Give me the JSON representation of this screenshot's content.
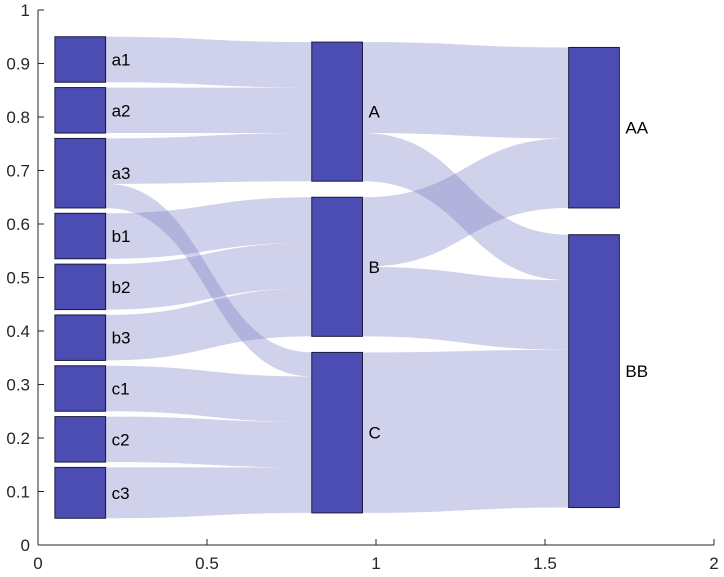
{
  "chart_data": {
    "type": "sankey",
    "title": "",
    "xlabel": "",
    "ylabel": "",
    "xlim": [
      0,
      2
    ],
    "ylim": [
      0,
      1
    ],
    "x_ticks": [
      "0",
      "0.5",
      "1",
      "1.5",
      "2"
    ],
    "y_ticks": [
      "0",
      "0.1",
      "0.2",
      "0.3",
      "0.4",
      "0.5",
      "0.6",
      "0.7",
      "0.8",
      "0.9",
      "1"
    ],
    "node_color": "#4b4db3",
    "flow_color": "#7d80c6",
    "columns": [
      {
        "x_range": [
          0.05,
          0.2
        ],
        "nodes": [
          {
            "id": "a1",
            "label": "a1",
            "y_top": 0.95,
            "y_bottom": 0.865
          },
          {
            "id": "a2",
            "label": "a2",
            "y_top": 0.855,
            "y_bottom": 0.77
          },
          {
            "id": "a3",
            "label": "a3",
            "y_top": 0.76,
            "y_bottom": 0.63
          },
          {
            "id": "b1",
            "label": "b1",
            "y_top": 0.62,
            "y_bottom": 0.535
          },
          {
            "id": "b2",
            "label": "b2",
            "y_top": 0.525,
            "y_bottom": 0.44
          },
          {
            "id": "b3",
            "label": "b3",
            "y_top": 0.43,
            "y_bottom": 0.345
          },
          {
            "id": "c1",
            "label": "c1",
            "y_top": 0.335,
            "y_bottom": 0.25
          },
          {
            "id": "c2",
            "label": "c2",
            "y_top": 0.24,
            "y_bottom": 0.155
          },
          {
            "id": "c3",
            "label": "c3",
            "y_top": 0.145,
            "y_bottom": 0.05
          }
        ]
      },
      {
        "x_range": [
          0.81,
          0.96
        ],
        "nodes": [
          {
            "id": "A",
            "label": "A",
            "y_top": 0.94,
            "y_bottom": 0.68
          },
          {
            "id": "B",
            "label": "B",
            "y_top": 0.65,
            "y_bottom": 0.39
          },
          {
            "id": "C",
            "label": "C",
            "y_top": 0.36,
            "y_bottom": 0.06
          }
        ]
      },
      {
        "x_range": [
          1.57,
          1.72
        ],
        "nodes": [
          {
            "id": "AA",
            "label": "AA",
            "y_top": 0.93,
            "y_bottom": 0.63
          },
          {
            "id": "BB",
            "label": "BB",
            "y_top": 0.58,
            "y_bottom": 0.07
          }
        ]
      }
    ],
    "flows": [
      {
        "source": "a1",
        "target": "A",
        "src": [
          0.95,
          0.865
        ],
        "dst": [
          0.94,
          0.855
        ]
      },
      {
        "source": "a2",
        "target": "A",
        "src": [
          0.855,
          0.77
        ],
        "dst": [
          0.855,
          0.77
        ]
      },
      {
        "source": "a3",
        "target": "A",
        "src": [
          0.76,
          0.675
        ],
        "dst": [
          0.77,
          0.68
        ]
      },
      {
        "source": "a3",
        "target": "C",
        "src": [
          0.675,
          0.63
        ],
        "dst": [
          0.36,
          0.315
        ]
      },
      {
        "source": "b1",
        "target": "B",
        "src": [
          0.62,
          0.535
        ],
        "dst": [
          0.65,
          0.565
        ]
      },
      {
        "source": "b2",
        "target": "B",
        "src": [
          0.525,
          0.44
        ],
        "dst": [
          0.565,
          0.48
        ]
      },
      {
        "source": "b3",
        "target": "B",
        "src": [
          0.43,
          0.345
        ],
        "dst": [
          0.48,
          0.39
        ]
      },
      {
        "source": "c1",
        "target": "C",
        "src": [
          0.335,
          0.25
        ],
        "dst": [
          0.315,
          0.23
        ]
      },
      {
        "source": "c2",
        "target": "C",
        "src": [
          0.24,
          0.155
        ],
        "dst": [
          0.23,
          0.145
        ]
      },
      {
        "source": "c3",
        "target": "C",
        "src": [
          0.145,
          0.05
        ],
        "dst": [
          0.145,
          0.06
        ]
      },
      {
        "source": "A",
        "target": "AA",
        "src": [
          0.94,
          0.77
        ],
        "dst": [
          0.93,
          0.76
        ]
      },
      {
        "source": "A",
        "target": "BB",
        "src": [
          0.77,
          0.68
        ],
        "dst": [
          0.58,
          0.495
        ]
      },
      {
        "source": "B",
        "target": "AA",
        "src": [
          0.65,
          0.52
        ],
        "dst": [
          0.76,
          0.63
        ]
      },
      {
        "source": "B",
        "target": "BB",
        "src": [
          0.52,
          0.39
        ],
        "dst": [
          0.495,
          0.365
        ]
      },
      {
        "source": "C",
        "target": "BB",
        "src": [
          0.36,
          0.06
        ],
        "dst": [
          0.365,
          0.07
        ]
      }
    ]
  }
}
